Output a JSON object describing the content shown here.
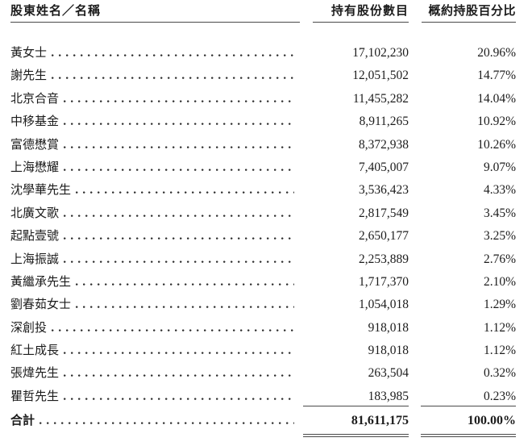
{
  "document": {
    "header": {
      "col_name": "股東姓名／名稱",
      "col_shares": "持有股份數目",
      "col_pct": "概約持股百分比"
    },
    "rows": [
      {
        "name": "黃女士",
        "shares": "17,102,230",
        "pct": "20.96%"
      },
      {
        "name": "謝先生",
        "shares": "12,051,502",
        "pct": "14.77%"
      },
      {
        "name": "北京合音",
        "shares": "11,455,282",
        "pct": "14.04%"
      },
      {
        "name": "中移基金",
        "shares": "8,911,265",
        "pct": "10.92%"
      },
      {
        "name": "富德懋賞",
        "shares": "8,372,938",
        "pct": "10.26%"
      },
      {
        "name": "上海懋耀",
        "shares": "7,405,007",
        "pct": "9.07%"
      },
      {
        "name": "沈學華先生",
        "shares": "3,536,423",
        "pct": "4.33%"
      },
      {
        "name": "北廣文歌",
        "shares": "2,817,549",
        "pct": "3.45%"
      },
      {
        "name": "起點壹號",
        "shares": "2,650,177",
        "pct": "3.25%"
      },
      {
        "name": "上海振誠",
        "shares": "2,253,889",
        "pct": "2.76%"
      },
      {
        "name": "黃繼承先生",
        "shares": "1,717,370",
        "pct": "2.10%"
      },
      {
        "name": "劉春茹女士",
        "shares": "1,054,018",
        "pct": "1.29%"
      },
      {
        "name": "深創投",
        "shares": "918,018",
        "pct": "1.12%"
      },
      {
        "name": "紅土成長",
        "shares": "918,018",
        "pct": "1.12%"
      },
      {
        "name": "張煒先生",
        "shares": "263,504",
        "pct": "0.32%"
      },
      {
        "name": "瞿哲先生",
        "shares": "183,985",
        "pct": "0.23%"
      }
    ],
    "total": {
      "name": "合計",
      "shares": "81,611,175",
      "pct": "100.00%"
    },
    "colors": {
      "background": "#ffffff",
      "text": "#1c1c1c",
      "rule": "#4a4a4a",
      "dot_leader": "#2f2f2f"
    }
  }
}
